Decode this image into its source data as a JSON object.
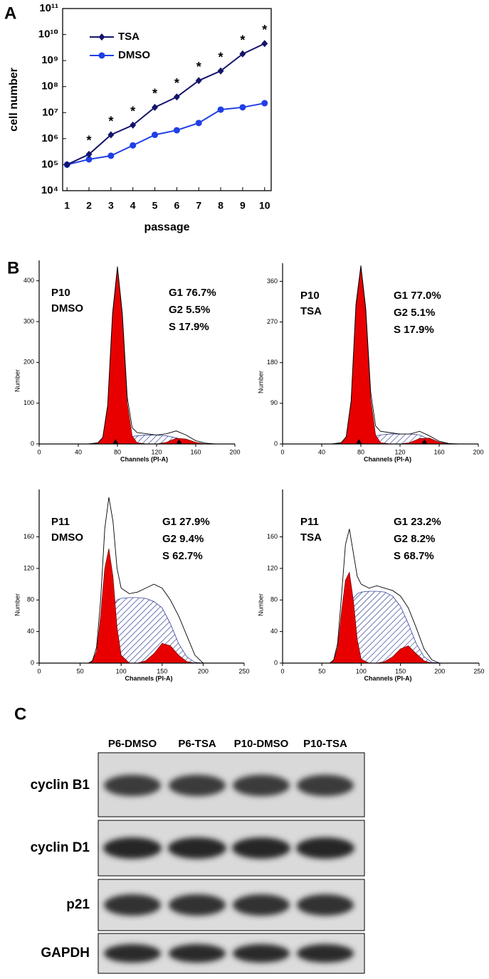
{
  "panel_labels": [
    "A",
    "B",
    "C"
  ],
  "chart_data": [
    {
      "type": "line",
      "xlabel": "passage",
      "ylabel": "cell number",
      "x": [
        1,
        2,
        3,
        4,
        5,
        6,
        7,
        8,
        9,
        10
      ],
      "xlim": [
        0.8,
        10.3
      ],
      "xticks": [
        1,
        2,
        3,
        4,
        5,
        6,
        7,
        8,
        9,
        10
      ],
      "log_y": true,
      "ylim": [
        10000,
        100000000000
      ],
      "yticks": [
        {
          "value": 10000,
          "label": "10⁴"
        },
        {
          "value": 100000,
          "label": "10⁵"
        },
        {
          "value": 1000000,
          "label": "10⁶"
        },
        {
          "value": 10000000,
          "label": "10⁷"
        },
        {
          "value": 100000000,
          "label": "10⁸"
        },
        {
          "value": 1000000000,
          "label": "10⁹"
        },
        {
          "value": 10000000000,
          "label": "10¹⁰"
        },
        {
          "value": 100000000000,
          "label": "10¹¹"
        }
      ],
      "legend": "upper left",
      "series": [
        {
          "name": "TSA",
          "color": "#14146b",
          "marker": "diamond",
          "values": [
            100000,
            250000,
            1400000,
            3300000,
            16000000,
            40000000,
            170000000,
            400000000,
            1800000000,
            4500000000
          ]
        },
        {
          "name": "DMSO",
          "color": "#1f3fe6",
          "marker": "circle",
          "values": [
            100000,
            160000,
            220000,
            550000,
            1400000,
            2100000,
            4000000,
            13000000,
            16000000,
            23000000
          ]
        }
      ],
      "annotations": [
        null,
        "*",
        "*",
        "*",
        "*",
        "*",
        "*",
        "*",
        "*",
        "*"
      ]
    },
    {
      "type": "area",
      "sample_label": [
        "P10",
        "DMSO"
      ],
      "phase_labels": [
        "G1 76.7%",
        "G2 5.5%",
        "S 17.9%"
      ],
      "xlabel": "Channels (PI-A)",
      "ylabel": "Number",
      "xlim": [
        0,
        200
      ],
      "xticks": [
        0,
        40,
        80,
        120,
        160,
        200
      ],
      "ylim": [
        0,
        450
      ],
      "yticks": [
        0,
        100,
        200,
        300,
        400
      ],
      "peak_markers": [
        78,
        143
      ],
      "x": [
        50,
        60,
        65,
        70,
        75,
        80,
        85,
        90,
        95,
        100,
        110,
        120,
        130,
        140,
        150,
        160,
        170,
        180
      ],
      "series": [
        {
          "style": "hatch",
          "color": "#1a2a8a",
          "values": [
            0,
            0,
            0,
            0,
            0,
            2,
            8,
            14,
            18,
            20,
            22,
            22,
            20,
            15,
            8,
            2,
            0,
            0
          ]
        },
        {
          "style": "fill",
          "color": "#e80000",
          "values": [
            0,
            2,
            15,
            90,
            310,
            430,
            310,
            100,
            20,
            3,
            0,
            0,
            0,
            0,
            0,
            0,
            0,
            0
          ]
        },
        {
          "style": "fill",
          "color": "#e80000",
          "values": [
            0,
            0,
            0,
            0,
            0,
            0,
            0,
            0,
            0,
            0,
            0,
            0,
            4,
            14,
            12,
            4,
            0,
            0
          ]
        },
        {
          "style": "line",
          "color": "#000000",
          "values": [
            0,
            3,
            16,
            95,
            320,
            435,
            320,
            115,
            40,
            28,
            25,
            22,
            25,
            32,
            22,
            8,
            2,
            0
          ]
        }
      ]
    },
    {
      "type": "area",
      "sample_label": [
        "P10",
        "TSA"
      ],
      "phase_labels": [
        "G1 77.0%",
        "G2 5.1%",
        "S 17.9%"
      ],
      "xlabel": "Channels (PI-A)",
      "ylabel": "Number",
      "xlim": [
        0,
        200
      ],
      "xticks": [
        0,
        40,
        80,
        120,
        160,
        200
      ],
      "ylim": [
        0,
        400
      ],
      "yticks": [
        0,
        90,
        180,
        270,
        360
      ],
      "peak_markers": [
        78,
        145
      ],
      "x": [
        50,
        60,
        65,
        70,
        75,
        80,
        85,
        90,
        95,
        100,
        110,
        120,
        130,
        140,
        150,
        160,
        170,
        180
      ],
      "series": [
        {
          "style": "hatch",
          "color": "#1a2a8a",
          "values": [
            0,
            0,
            0,
            0,
            0,
            2,
            8,
            14,
            18,
            20,
            22,
            22,
            22,
            20,
            10,
            3,
            0,
            0
          ]
        },
        {
          "style": "fill",
          "color": "#e80000",
          "values": [
            0,
            2,
            15,
            90,
            300,
            390,
            290,
            100,
            20,
            3,
            0,
            0,
            0,
            0,
            0,
            0,
            0,
            0
          ]
        },
        {
          "style": "fill",
          "color": "#e80000",
          "values": [
            0,
            0,
            0,
            0,
            0,
            0,
            0,
            0,
            0,
            0,
            0,
            0,
            3,
            12,
            13,
            4,
            0,
            0
          ]
        },
        {
          "style": "line",
          "color": "#000000",
          "values": [
            0,
            3,
            16,
            95,
            310,
            395,
            300,
            115,
            40,
            28,
            25,
            22,
            22,
            28,
            18,
            6,
            1,
            0
          ]
        }
      ]
    },
    {
      "type": "area",
      "sample_label": [
        "P11",
        "DMSO"
      ],
      "phase_labels": [
        "G1 27.9%",
        "G2 9.4%",
        "S 62.7%"
      ],
      "xlabel": "Channels (PI-A)",
      "ylabel": "Number",
      "xlim": [
        0,
        250
      ],
      "xticks": [
        0,
        50,
        100,
        150,
        200,
        250
      ],
      "ylim": [
        0,
        220
      ],
      "yticks": [
        0,
        40,
        80,
        120,
        160
      ],
      "x": [
        60,
        65,
        70,
        75,
        80,
        85,
        90,
        95,
        100,
        110,
        120,
        130,
        140,
        150,
        160,
        170,
        180,
        190,
        200
      ],
      "series": [
        {
          "style": "hatch",
          "color": "#1a2a8a",
          "values": [
            0,
            0,
            2,
            10,
            30,
            55,
            72,
            80,
            82,
            83,
            83,
            82,
            78,
            70,
            50,
            25,
            8,
            1,
            0
          ]
        },
        {
          "style": "fill",
          "color": "#e80000",
          "values": [
            0,
            2,
            15,
            60,
            120,
            145,
            110,
            45,
            10,
            0,
            0,
            0,
            0,
            0,
            0,
            0,
            0,
            0,
            0
          ]
        },
        {
          "style": "fill",
          "color": "#e80000",
          "values": [
            0,
            0,
            0,
            0,
            0,
            0,
            0,
            0,
            0,
            0,
            0,
            3,
            12,
            25,
            22,
            10,
            2,
            0,
            0
          ]
        },
        {
          "style": "line",
          "color": "#000000",
          "values": [
            0,
            3,
            20,
            80,
            170,
            210,
            180,
            120,
            95,
            88,
            90,
            95,
            100,
            95,
            80,
            60,
            35,
            10,
            0
          ]
        }
      ]
    },
    {
      "type": "area",
      "sample_label": [
        "P11",
        "TSA"
      ],
      "phase_labels": [
        "G1 23.2%",
        "G2 8.2%",
        "S 68.7%"
      ],
      "xlabel": "Channels (PI-A)",
      "ylabel": "Number",
      "xlim": [
        0,
        250
      ],
      "xticks": [
        0,
        50,
        100,
        150,
        200,
        250
      ],
      "ylim": [
        0,
        220
      ],
      "yticks": [
        0,
        40,
        80,
        120,
        160
      ],
      "x": [
        60,
        65,
        70,
        75,
        80,
        85,
        90,
        95,
        100,
        110,
        120,
        130,
        140,
        150,
        160,
        170,
        180,
        190,
        200
      ],
      "series": [
        {
          "style": "hatch",
          "color": "#1a2a8a",
          "values": [
            0,
            0,
            3,
            15,
            40,
            65,
            82,
            88,
            90,
            91,
            91,
            90,
            85,
            72,
            50,
            25,
            8,
            1,
            0
          ]
        },
        {
          "style": "fill",
          "color": "#e80000",
          "values": [
            0,
            3,
            20,
            65,
            105,
            115,
            80,
            30,
            5,
            0,
            0,
            0,
            0,
            0,
            0,
            0,
            0,
            0,
            0
          ]
        },
        {
          "style": "fill",
          "color": "#e80000",
          "values": [
            0,
            0,
            0,
            0,
            0,
            0,
            0,
            0,
            0,
            0,
            0,
            2,
            8,
            18,
            22,
            12,
            3,
            0,
            0
          ]
        },
        {
          "style": "line",
          "color": "#000000",
          "values": [
            0,
            4,
            25,
            85,
            150,
            170,
            140,
            110,
            100,
            95,
            98,
            95,
            92,
            85,
            70,
            45,
            18,
            4,
            0
          ]
        }
      ]
    }
  ],
  "blot": {
    "columns": [
      "P6-DMSO",
      "P6-TSA",
      "P10-DMSO",
      "P10-TSA"
    ],
    "rows": [
      "cyclin B1",
      "cyclin D1",
      "p21",
      "GAPDH"
    ]
  }
}
